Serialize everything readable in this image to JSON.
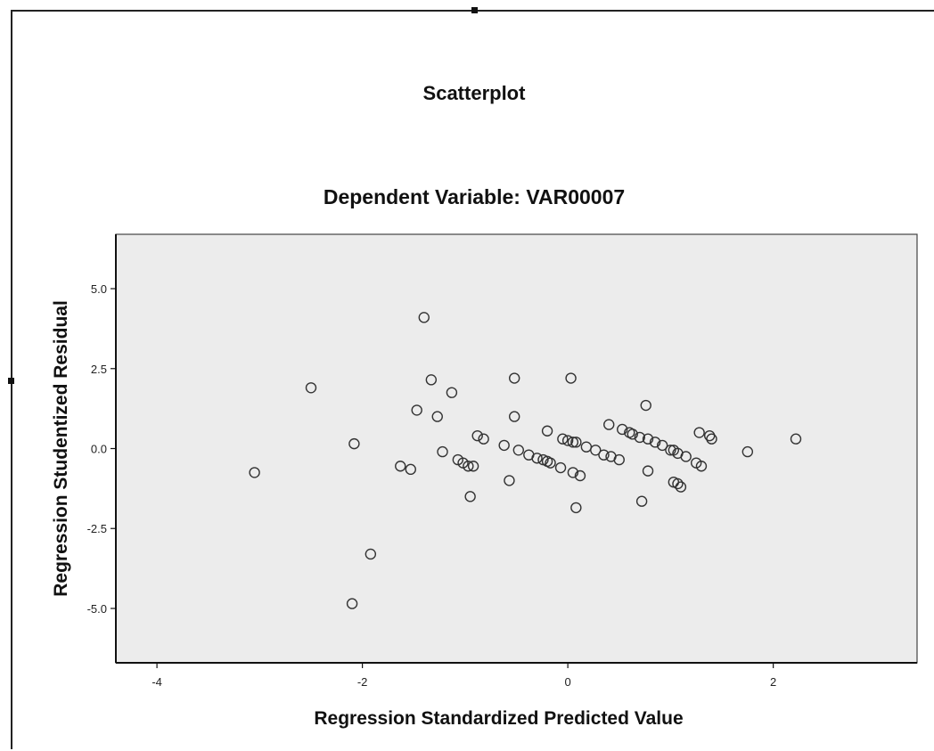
{
  "chart_data": {
    "type": "scatter",
    "title": "Scatterplot",
    "subtitle": "Dependent Variable: VAR00007",
    "xlabel": "Regression Standardized Predicted Value",
    "ylabel": "Regression Studentized Residual",
    "xlim": [
      -4.4,
      3.4
    ],
    "ylim": [
      -6.7,
      6.7
    ],
    "x_ticks": [
      -4,
      -2,
      0,
      2
    ],
    "x_tick_labels": [
      "-4",
      "-2",
      "0",
      "2"
    ],
    "y_ticks": [
      5,
      2.5,
      0,
      -2.5,
      -5
    ],
    "y_tick_labels": [
      "5.0",
      "2.5",
      "0.0",
      "-2.5",
      "-5.0"
    ],
    "grid": false,
    "colors": {
      "plot_bg": "#ececec",
      "marker": "#333333"
    },
    "points": [
      {
        "x": -3.05,
        "y": -0.75
      },
      {
        "x": -2.5,
        "y": 1.9
      },
      {
        "x": -2.08,
        "y": 0.15
      },
      {
        "x": -2.1,
        "y": -4.85
      },
      {
        "x": -1.92,
        "y": -3.3
      },
      {
        "x": -1.63,
        "y": -0.55
      },
      {
        "x": -1.53,
        "y": -0.65
      },
      {
        "x": -1.47,
        "y": 1.2
      },
      {
        "x": -1.4,
        "y": 4.1
      },
      {
        "x": -1.33,
        "y": 2.15
      },
      {
        "x": -1.27,
        "y": 1.0
      },
      {
        "x": -1.22,
        "y": -0.1
      },
      {
        "x": -1.13,
        "y": 1.75
      },
      {
        "x": -1.07,
        "y": -0.35
      },
      {
        "x": -1.02,
        "y": -0.45
      },
      {
        "x": -0.97,
        "y": -0.55
      },
      {
        "x": -0.92,
        "y": -0.55
      },
      {
        "x": -0.95,
        "y": -1.5
      },
      {
        "x": -0.88,
        "y": 0.4
      },
      {
        "x": -0.82,
        "y": 0.3
      },
      {
        "x": -0.62,
        "y": 0.1
      },
      {
        "x": -0.57,
        "y": -1.0
      },
      {
        "x": -0.52,
        "y": 2.2
      },
      {
        "x": -0.52,
        "y": 1.0
      },
      {
        "x": -0.48,
        "y": -0.05
      },
      {
        "x": -0.38,
        "y": -0.2
      },
      {
        "x": -0.3,
        "y": -0.3
      },
      {
        "x": -0.24,
        "y": -0.35
      },
      {
        "x": -0.2,
        "y": -0.4
      },
      {
        "x": -0.17,
        "y": -0.45
      },
      {
        "x": -0.2,
        "y": 0.55
      },
      {
        "x": -0.07,
        "y": -0.6
      },
      {
        "x": -0.05,
        "y": 0.3
      },
      {
        "x": 0.0,
        "y": 0.25
      },
      {
        "x": 0.03,
        "y": 2.2
      },
      {
        "x": 0.05,
        "y": 0.2
      },
      {
        "x": 0.08,
        "y": 0.2
      },
      {
        "x": 0.05,
        "y": -0.75
      },
      {
        "x": 0.12,
        "y": -0.85
      },
      {
        "x": 0.08,
        "y": -1.85
      },
      {
        "x": 0.18,
        "y": 0.05
      },
      {
        "x": 0.27,
        "y": -0.05
      },
      {
        "x": 0.35,
        "y": -0.2
      },
      {
        "x": 0.4,
        "y": 0.75
      },
      {
        "x": 0.42,
        "y": -0.25
      },
      {
        "x": 0.5,
        "y": -0.35
      },
      {
        "x": 0.53,
        "y": 0.6
      },
      {
        "x": 0.6,
        "y": 0.5
      },
      {
        "x": 0.63,
        "y": 0.45
      },
      {
        "x": 0.7,
        "y": 0.35
      },
      {
        "x": 0.72,
        "y": -1.65
      },
      {
        "x": 0.76,
        "y": 1.35
      },
      {
        "x": 0.78,
        "y": 0.3
      },
      {
        "x": 0.78,
        "y": -0.7
      },
      {
        "x": 0.85,
        "y": 0.2
      },
      {
        "x": 0.92,
        "y": 0.1
      },
      {
        "x": 1.0,
        "y": -0.05
      },
      {
        "x": 1.03,
        "y": -0.05
      },
      {
        "x": 1.07,
        "y": -0.15
      },
      {
        "x": 1.15,
        "y": -0.25
      },
      {
        "x": 1.03,
        "y": -1.05
      },
      {
        "x": 1.07,
        "y": -1.1
      },
      {
        "x": 1.1,
        "y": -1.2
      },
      {
        "x": 1.25,
        "y": -0.45
      },
      {
        "x": 1.3,
        "y": -0.55
      },
      {
        "x": 1.28,
        "y": 0.5
      },
      {
        "x": 1.38,
        "y": 0.4
      },
      {
        "x": 1.4,
        "y": 0.3
      },
      {
        "x": 1.75,
        "y": -0.1
      },
      {
        "x": 2.22,
        "y": 0.3
      }
    ]
  }
}
